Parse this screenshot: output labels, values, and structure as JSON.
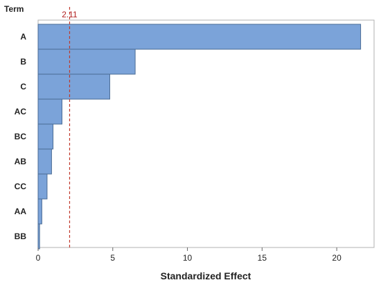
{
  "chart_data": {
    "type": "bar",
    "orientation": "horizontal",
    "categories": [
      "A",
      "B",
      "C",
      "AC",
      "BC",
      "AB",
      "CC",
      "AA",
      "BB"
    ],
    "values": [
      21.6,
      6.5,
      4.8,
      1.6,
      1.0,
      0.9,
      0.6,
      0.25,
      0.1
    ],
    "title": "",
    "xlabel": "Standardized Effect",
    "ylabel": "Term",
    "xlim": [
      0,
      22.5
    ],
    "xticks": [
      0,
      5,
      10,
      15,
      20
    ],
    "reference_line": {
      "value": 2.11,
      "label": "2.11",
      "color": "#c0392b"
    },
    "bar_color": "#7ba3d9",
    "bar_edge_color": "#4a6b94",
    "grid": false,
    "legend": "none"
  }
}
